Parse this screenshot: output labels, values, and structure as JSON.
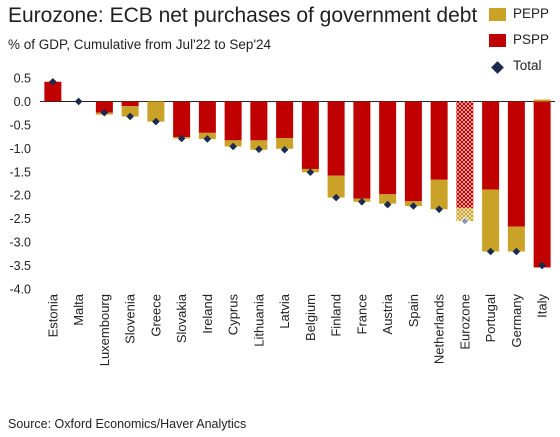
{
  "header": {
    "title": "Eurozone: ECB net purchases of government debt",
    "subtitle": "% of GDP, Cumulative from Jul'22 to Sep'24"
  },
  "footer": {
    "source": "Source: Oxford Economics/Haver Analytics"
  },
  "colors": {
    "pepp": "#c9a227",
    "pspp": "#c00000",
    "total": "#1b2a4e"
  },
  "chart_data": {
    "type": "bar",
    "stacked": true,
    "categories": [
      "Estonia",
      "Malta",
      "Luxembourg",
      "Slovenia",
      "Greece",
      "Slovakia",
      "Ireland",
      "Cyprus",
      "Lithuania",
      "Latvia",
      "Belgium",
      "Finland",
      "France",
      "Austria",
      "Spain",
      "Netherlands",
      "Eurozone",
      "Portugal",
      "Germany",
      "Italy"
    ],
    "series": [
      {
        "name": "PEPP",
        "values": [
          0.0,
          0.0,
          -0.04,
          -0.22,
          -0.43,
          -0.03,
          -0.13,
          -0.13,
          -0.2,
          -0.23,
          -0.07,
          -0.47,
          -0.07,
          -0.2,
          -0.1,
          -0.63,
          -0.28,
          -1.32,
          -0.53,
          0.04
        ]
      },
      {
        "name": "PSPP",
        "values": [
          0.42,
          0.0,
          -0.24,
          -0.1,
          0.0,
          -0.76,
          -0.67,
          -0.83,
          -0.83,
          -0.78,
          -1.44,
          -1.58,
          -2.07,
          -1.98,
          -2.13,
          -1.67,
          -2.27,
          -1.88,
          -2.67,
          -3.54
        ]
      },
      {
        "name": "Total",
        "type": "marker",
        "values": [
          0.42,
          0.0,
          -0.24,
          -0.32,
          -0.43,
          -0.79,
          -0.8,
          -0.96,
          -1.02,
          -1.03,
          -1.51,
          -2.05,
          -2.14,
          -2.2,
          -2.23,
          -2.3,
          -2.55,
          -3.2,
          -3.2,
          -3.5
        ]
      }
    ],
    "highlight_category": "Eurozone",
    "yticks": [
      "0.5",
      "0.0",
      "-0.5",
      "-1.0",
      "-1.5",
      "-2.0",
      "-2.5",
      "-3.0",
      "-3.5",
      "-4.0"
    ],
    "ylim": [
      -4.0,
      0.6
    ],
    "xlabel": "",
    "ylabel": "",
    "grid": false,
    "legend_position": "top-right"
  }
}
